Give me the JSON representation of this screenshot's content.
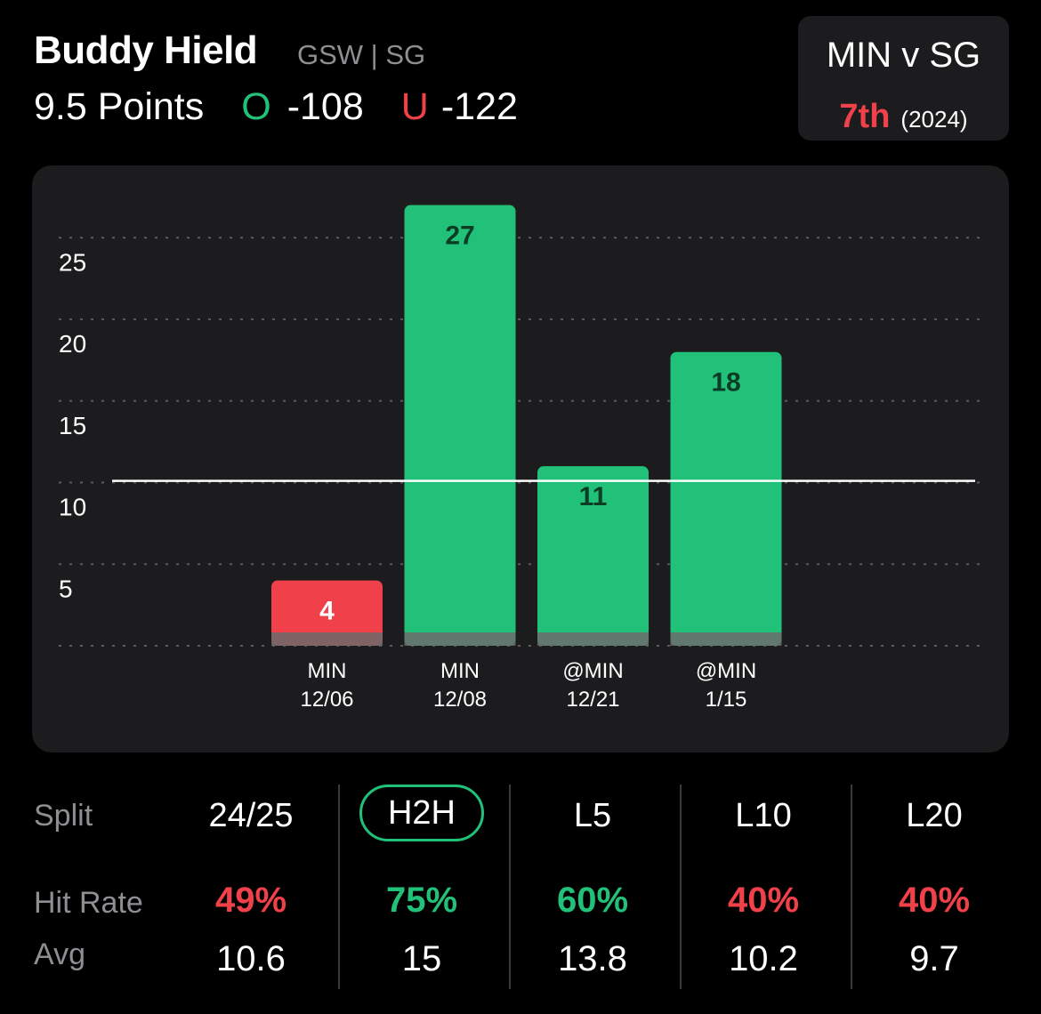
{
  "header": {
    "player_name": "Buddy Hield",
    "team_position": "GSW | SG",
    "line": "9.5 Points",
    "over_letter": "O",
    "over_odds": "-108",
    "under_letter": "U",
    "under_odds": "-122"
  },
  "matchup": {
    "title": "MIN v SG",
    "rank": "7th",
    "season": "(2024)"
  },
  "colors": {
    "over": "#22c17a",
    "under": "#f0414a",
    "card": "#1c1c1e",
    "muted": "#8e8e93"
  },
  "chart_data": {
    "type": "bar",
    "categories": [
      "MIN\n12/06",
      "MIN\n12/08",
      "@MIN\n12/21",
      "@MIN\n1/15"
    ],
    "category_lines": [
      [
        "MIN",
        "12/06"
      ],
      [
        "MIN",
        "12/08"
      ],
      [
        "@MIN",
        "12/21"
      ],
      [
        "@MIN",
        "1/15"
      ]
    ],
    "values": [
      4,
      27,
      11,
      18
    ],
    "value_labels": [
      "4",
      "27",
      "11",
      "18"
    ],
    "threshold": 9.5,
    "ylim": [
      0,
      27.5
    ],
    "yticks": [
      5,
      10,
      15,
      20,
      25
    ],
    "ytick_labels": [
      "5",
      "10",
      "15",
      "20",
      "25"
    ],
    "grid": true,
    "title": "",
    "xlabel": "",
    "ylabel": ""
  },
  "stats": {
    "split_label": "Split",
    "hit_rate_label": "Hit Rate",
    "avg_label": "Avg",
    "columns": [
      {
        "split": "24/25",
        "hit_rate": "49%",
        "avg": "10.6",
        "hit_color": "#f0414a",
        "active": false
      },
      {
        "split": "H2H",
        "hit_rate": "75%",
        "avg": "15",
        "hit_color": "#22c17a",
        "active": true
      },
      {
        "split": "L5",
        "hit_rate": "60%",
        "avg": "13.8",
        "hit_color": "#22c17a",
        "active": false
      },
      {
        "split": "L10",
        "hit_rate": "40%",
        "avg": "10.2",
        "hit_color": "#f0414a",
        "active": false
      },
      {
        "split": "L20",
        "hit_rate": "40%",
        "avg": "9.7",
        "hit_color": "#f0414a",
        "active": false
      }
    ]
  }
}
